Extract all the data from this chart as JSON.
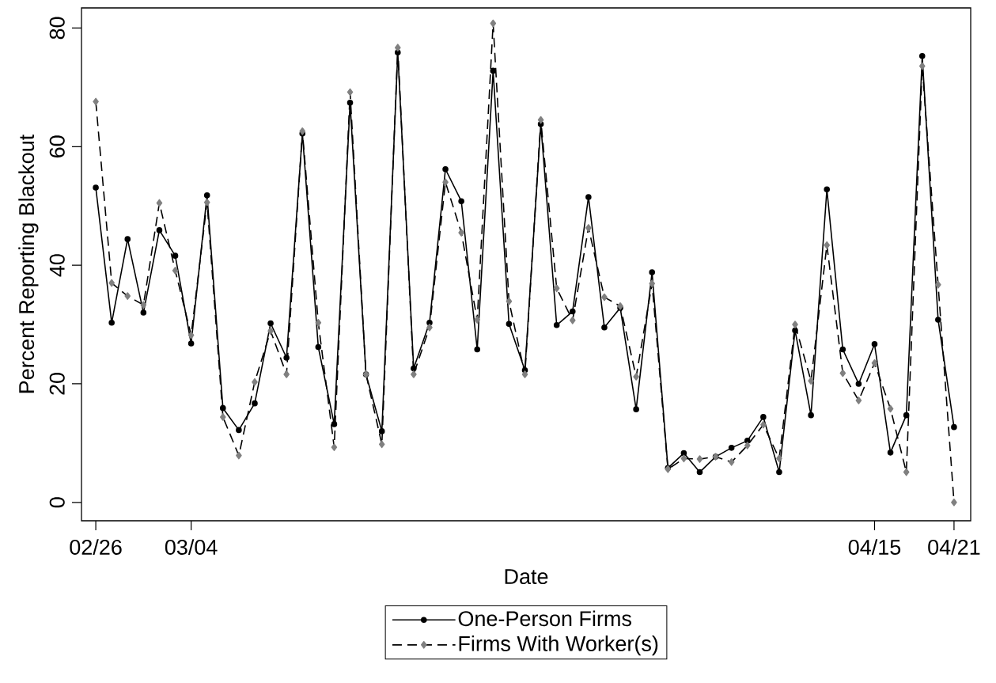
{
  "chart_data": {
    "type": "line",
    "xlabel": "Date",
    "ylabel": "Percent Reporting Blackout",
    "categories": [
      "02/26",
      null,
      null,
      null,
      null,
      null,
      "03/04",
      null,
      null,
      null,
      null,
      null,
      null,
      null,
      null,
      null,
      null,
      null,
      null,
      null,
      null,
      null,
      null,
      null,
      null,
      null,
      null,
      null,
      null,
      null,
      null,
      null,
      null,
      null,
      null,
      null,
      null,
      null,
      null,
      null,
      null,
      null,
      null,
      null,
      null,
      null,
      null,
      null,
      null,
      "04/15",
      null,
      null,
      null,
      null,
      "04/21"
    ],
    "ylim": [
      -3.1,
      83.4
    ],
    "yticks": [
      0,
      20,
      40,
      60,
      80
    ],
    "grid": false,
    "legend": "bottom",
    "series": [
      {
        "name": "One-Person Firms",
        "color": "#000000",
        "marker": "circle",
        "line_style": "solid",
        "values": [
          53.1,
          30.3,
          44.4,
          32.0,
          45.9,
          41.6,
          26.8,
          51.8,
          15.9,
          12.2,
          16.7,
          30.2,
          24.4,
          62.2,
          26.2,
          13.2,
          67.4,
          21.6,
          12.0,
          75.9,
          22.6,
          30.3,
          56.2,
          50.8,
          25.8,
          72.8,
          30.1,
          22.3,
          63.8,
          29.9,
          32.2,
          51.5,
          29.5,
          32.8,
          15.7,
          38.8,
          5.8,
          8.3,
          5.1,
          7.7,
          9.2,
          10.4,
          14.4,
          5.1,
          29.0,
          14.7,
          52.8,
          25.8,
          20.0,
          26.7,
          8.4,
          14.7,
          75.3,
          30.8,
          12.7
        ]
      },
      {
        "name": "Firms With Worker(s)",
        "color": "#808080",
        "marker": "diamond",
        "line_style": "dashed",
        "values": [
          67.6,
          37.0,
          34.8,
          33.3,
          50.5,
          39.1,
          28.2,
          50.6,
          14.4,
          7.9,
          20.3,
          28.9,
          21.6,
          62.6,
          30.3,
          9.3,
          69.2,
          21.6,
          9.8,
          76.7,
          21.6,
          29.5,
          54.0,
          45.5,
          30.8,
          80.8,
          33.9,
          21.6,
          64.5,
          36.1,
          30.7,
          46.3,
          34.6,
          33.1,
          21.2,
          36.9,
          5.6,
          7.4,
          7.3,
          7.7,
          6.8,
          9.6,
          13.1,
          7.4,
          30.0,
          20.5,
          43.4,
          21.8,
          17.2,
          23.5,
          15.8,
          5.1,
          73.6,
          36.7,
          0.0
        ]
      }
    ]
  }
}
